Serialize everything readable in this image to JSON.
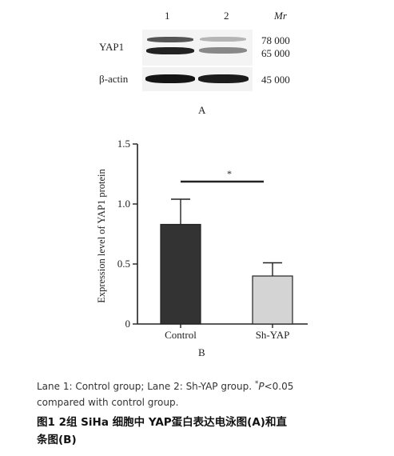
{
  "blot": {
    "lane_labels": [
      "1",
      "2"
    ],
    "mr_label": "Mr",
    "rows": [
      {
        "label": "YAP1",
        "markers": [
          "78 000",
          "65 000"
        ]
      },
      {
        "label": "β-actin",
        "markers": [
          "45 000"
        ]
      }
    ],
    "panel_label": "A"
  },
  "chart_data": {
    "type": "bar",
    "categories": [
      "Control",
      "Sh-YAP"
    ],
    "values": [
      0.83,
      0.4
    ],
    "errors": [
      0.21,
      0.11
    ],
    "ylabel": "Expression level of YAP1 protein",
    "xlabel": "",
    "ylim": [
      0,
      1.5
    ],
    "yticks": [
      "0",
      "0.5",
      "1.0",
      "1.5"
    ],
    "significance": "*",
    "bar_colors": [
      "#333333",
      "#d4d4d4"
    ],
    "panel_label": "B"
  },
  "caption": {
    "line1_a": "Lane 1: Control group; Lane 2: Sh-YAP group.",
    "line1_star": "*",
    "line1_p": "P",
    "line1_b": "<0.05",
    "line2": "compared with control group."
  },
  "figure_caption": {
    "line1": "图1  2组 SiHa 细胞中 YAP蛋白表达电泳图(A)和直",
    "line2": "条图(B)"
  }
}
